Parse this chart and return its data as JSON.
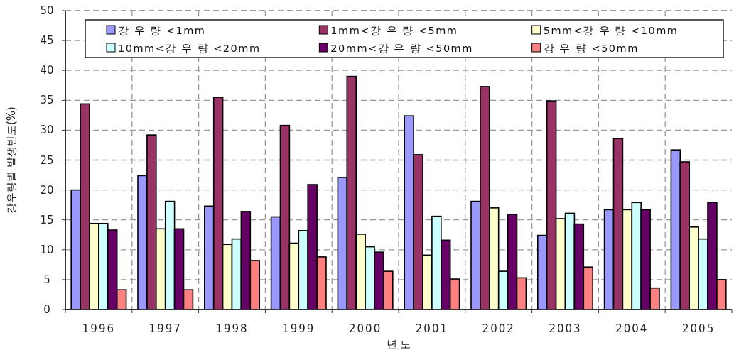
{
  "chart_data": {
    "type": "bar",
    "xlabel": "년 도",
    "ylabel": "강우량별 발생빈도(%)",
    "categories": [
      "1996",
      "1997",
      "1998",
      "1999",
      "2000",
      "2001",
      "2002",
      "2003",
      "2004",
      "2005"
    ],
    "series": [
      {
        "name": "강 우 량 <1mm",
        "color": "#9999ff",
        "values": [
          20.0,
          22.4,
          17.3,
          15.5,
          22.1,
          32.4,
          18.1,
          12.4,
          16.7,
          26.7
        ]
      },
      {
        "name": "1mm<강 우 량 <5mm",
        "color": "#993366",
        "values": [
          34.4,
          29.2,
          35.5,
          30.8,
          39.0,
          25.9,
          37.3,
          34.9,
          28.6,
          24.7
        ]
      },
      {
        "name": "5mm<강 우 량 <10mm",
        "color": "#ffffcc",
        "values": [
          14.4,
          13.5,
          10.9,
          11.1,
          12.6,
          9.1,
          17.0,
          15.2,
          16.7,
          13.8
        ]
      },
      {
        "name": "10mm<강 우 량 <20mm",
        "color": "#ccffff",
        "values": [
          14.4,
          18.1,
          11.8,
          13.2,
          10.5,
          15.6,
          6.4,
          16.1,
          17.9,
          11.8
        ]
      },
      {
        "name": "20mm<강 우 량 <50mm",
        "color": "#660066",
        "values": [
          13.3,
          13.5,
          16.4,
          20.9,
          9.6,
          11.6,
          15.9,
          14.3,
          16.7,
          17.9
        ]
      },
      {
        "name": "강 우 량 <50mm",
        "color": "#ff8080",
        "values": [
          3.3,
          3.3,
          8.2,
          8.8,
          6.4,
          5.1,
          5.3,
          7.1,
          3.6,
          5.0
        ]
      }
    ],
    "ylim": [
      0,
      50
    ],
    "yticks": [
      0,
      5,
      10,
      15,
      20,
      25,
      30,
      35,
      40,
      45,
      50
    ],
    "grid": true,
    "legend": "top"
  }
}
